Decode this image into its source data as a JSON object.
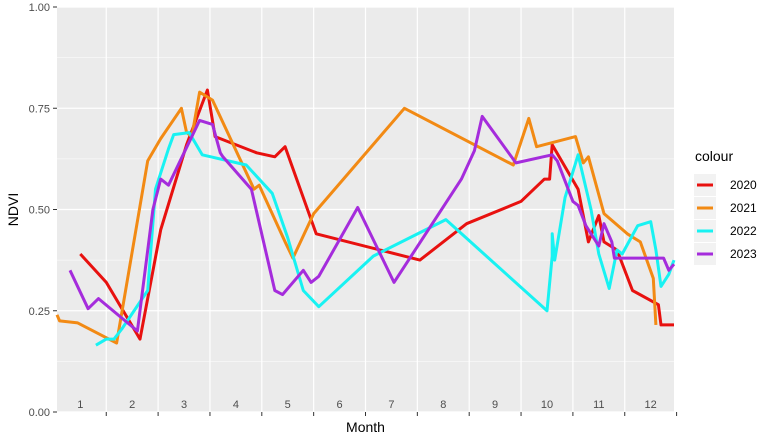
{
  "chart_data": {
    "type": "line",
    "xlabel": "Month",
    "ylabel": "NDVI",
    "ylim": [
      0,
      1
    ],
    "xlim": [
      0.55,
      12.45
    ],
    "y_ticks": [
      "0.00",
      "0.25",
      "0.50",
      "0.75",
      "1.00"
    ],
    "month_labels": [
      "1",
      "2",
      "3",
      "4",
      "5",
      "6",
      "7",
      "8",
      "9",
      "10",
      "11",
      "12"
    ],
    "grid": true,
    "legend": {
      "title": "colour",
      "position": "right"
    },
    "series": [
      {
        "name": "2020",
        "color": "#E8110F",
        "points": [
          [
            1.0,
            0.39
          ],
          [
            1.5,
            0.32
          ],
          [
            2.15,
            0.18
          ],
          [
            2.55,
            0.45
          ],
          [
            3.05,
            0.66
          ],
          [
            3.45,
            0.795
          ],
          [
            3.6,
            0.68
          ],
          [
            4.4,
            0.64
          ],
          [
            4.75,
            0.63
          ],
          [
            4.95,
            0.655
          ],
          [
            5.55,
            0.44
          ],
          [
            7.55,
            0.375
          ],
          [
            8.45,
            0.465
          ],
          [
            9.5,
            0.52
          ],
          [
            9.95,
            0.575
          ],
          [
            10.05,
            0.575
          ],
          [
            10.1,
            0.66
          ],
          [
            10.6,
            0.55
          ],
          [
            10.8,
            0.42
          ],
          [
            11.0,
            0.485
          ],
          [
            11.1,
            0.42
          ],
          [
            11.35,
            0.4
          ],
          [
            11.65,
            0.3
          ],
          [
            12.15,
            0.265
          ],
          [
            12.2,
            0.215
          ],
          [
            12.45,
            0.215
          ]
        ]
      },
      {
        "name": "2021",
        "color": "#F28A14",
        "points": [
          [
            0.55,
            0.24
          ],
          [
            0.6,
            0.225
          ],
          [
            0.95,
            0.22
          ],
          [
            1.7,
            0.17
          ],
          [
            2.3,
            0.62
          ],
          [
            2.55,
            0.675
          ],
          [
            2.95,
            0.75
          ],
          [
            3.05,
            0.69
          ],
          [
            3.15,
            0.68
          ],
          [
            3.3,
            0.79
          ],
          [
            3.55,
            0.77
          ],
          [
            4.35,
            0.55
          ],
          [
            4.45,
            0.56
          ],
          [
            4.95,
            0.42
          ],
          [
            5.1,
            0.38
          ],
          [
            5.5,
            0.49
          ],
          [
            7.25,
            0.75
          ],
          [
            9.35,
            0.61
          ],
          [
            9.65,
            0.725
          ],
          [
            9.8,
            0.655
          ],
          [
            10.55,
            0.68
          ],
          [
            10.7,
            0.615
          ],
          [
            10.8,
            0.63
          ],
          [
            11.1,
            0.49
          ],
          [
            11.55,
            0.44
          ],
          [
            11.8,
            0.42
          ],
          [
            12.05,
            0.33
          ],
          [
            12.1,
            0.215
          ]
        ]
      },
      {
        "name": "2022",
        "color": "#18F2F2",
        "points": [
          [
            1.3,
            0.165
          ],
          [
            1.5,
            0.18
          ],
          [
            1.65,
            0.18
          ],
          [
            1.8,
            0.205
          ],
          [
            2.3,
            0.3
          ],
          [
            2.45,
            0.55
          ],
          [
            2.7,
            0.65
          ],
          [
            2.8,
            0.685
          ],
          [
            3.1,
            0.69
          ],
          [
            3.35,
            0.635
          ],
          [
            4.2,
            0.61
          ],
          [
            4.7,
            0.54
          ],
          [
            5.0,
            0.43
          ],
          [
            5.3,
            0.3
          ],
          [
            5.6,
            0.26
          ],
          [
            6.65,
            0.385
          ],
          [
            8.05,
            0.475
          ],
          [
            10.0,
            0.25
          ],
          [
            10.1,
            0.385
          ],
          [
            10.1,
            0.44
          ],
          [
            10.15,
            0.375
          ],
          [
            10.35,
            0.53
          ],
          [
            10.6,
            0.635
          ],
          [
            10.85,
            0.5
          ],
          [
            11.0,
            0.39
          ],
          [
            11.2,
            0.305
          ],
          [
            11.35,
            0.4
          ],
          [
            11.45,
            0.39
          ],
          [
            11.75,
            0.46
          ],
          [
            12.0,
            0.47
          ],
          [
            12.1,
            0.4
          ],
          [
            12.2,
            0.31
          ],
          [
            12.35,
            0.34
          ],
          [
            12.45,
            0.375
          ]
        ]
      },
      {
        "name": "2023",
        "color": "#A52CDC",
        "points": [
          [
            0.8,
            0.35
          ],
          [
            1.15,
            0.255
          ],
          [
            1.35,
            0.28
          ],
          [
            2.1,
            0.2
          ],
          [
            2.4,
            0.5
          ],
          [
            2.55,
            0.575
          ],
          [
            2.7,
            0.56
          ],
          [
            3.3,
            0.72
          ],
          [
            3.55,
            0.71
          ],
          [
            3.7,
            0.64
          ],
          [
            3.75,
            0.63
          ],
          [
            4.3,
            0.55
          ],
          [
            4.75,
            0.3
          ],
          [
            4.9,
            0.29
          ],
          [
            5.3,
            0.35
          ],
          [
            5.45,
            0.32
          ],
          [
            5.6,
            0.335
          ],
          [
            6.35,
            0.505
          ],
          [
            7.05,
            0.32
          ],
          [
            8.35,
            0.575
          ],
          [
            8.6,
            0.645
          ],
          [
            8.75,
            0.73
          ],
          [
            9.4,
            0.615
          ],
          [
            10.1,
            0.635
          ],
          [
            10.2,
            0.62
          ],
          [
            10.5,
            0.52
          ],
          [
            10.6,
            0.51
          ],
          [
            10.75,
            0.46
          ],
          [
            11.0,
            0.41
          ],
          [
            11.1,
            0.465
          ],
          [
            11.25,
            0.42
          ],
          [
            11.3,
            0.38
          ],
          [
            12.05,
            0.38
          ],
          [
            12.25,
            0.38
          ],
          [
            12.35,
            0.35
          ],
          [
            12.45,
            0.365
          ]
        ]
      }
    ]
  }
}
